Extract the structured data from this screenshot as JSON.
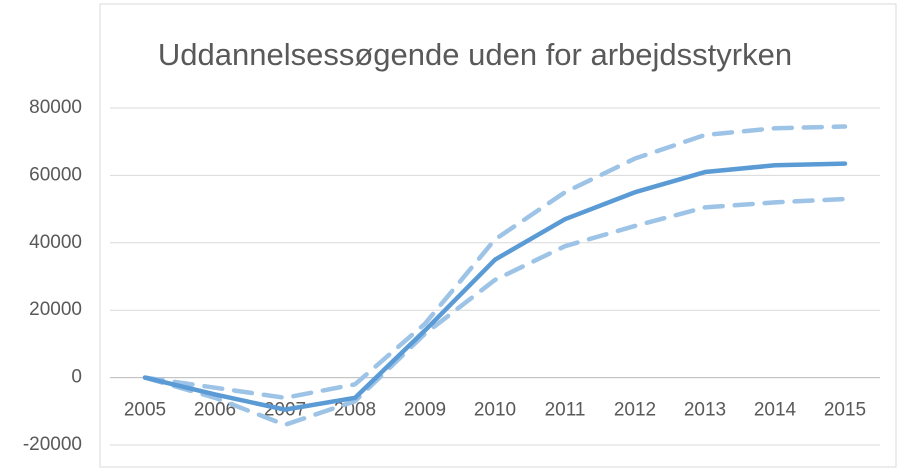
{
  "chart_data": {
    "type": "line",
    "title": "Uddannelsessøgende uden for arbejdsstyrken",
    "categories": [
      "2005",
      "2006",
      "2007",
      "2008",
      "2009",
      "2010",
      "2011",
      "2012",
      "2013",
      "2014",
      "2015"
    ],
    "series": [
      {
        "color": "#9dc3e6",
        "dashed": true,
        "values": [
          0,
          -3000,
          -6000,
          -2000,
          16000,
          41000,
          55000,
          65000,
          72000,
          74000,
          74500
        ]
      },
      {
        "color": "#9dc3e6",
        "dashed": true,
        "values": [
          0,
          -6000,
          -14000,
          -7000,
          13000,
          29000,
          39000,
          45000,
          50500,
          52000,
          53000
        ]
      },
      {
        "color": "#5b9bd5",
        "dashed": false,
        "values": [
          0,
          -5000,
          -9500,
          -6000,
          14000,
          35000,
          47000,
          55000,
          61000,
          63000,
          63500
        ]
      }
    ],
    "ylim": [
      -20000,
      80000
    ],
    "yticks": [
      -20000,
      0,
      20000,
      40000,
      60000,
      80000
    ],
    "grid": true
  }
}
